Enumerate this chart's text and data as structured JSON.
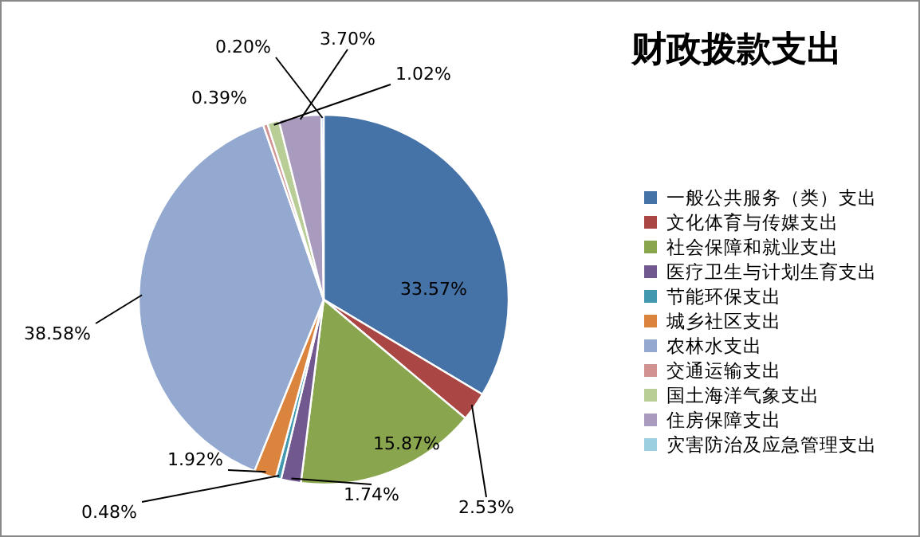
{
  "chart_data": {
    "type": "pie",
    "title": "财政拨款支出",
    "categories": [
      "一般公共服务（类）支出",
      "文化体育与传媒支出",
      "社会保障和就业支出",
      "医疗卫生与计划生育支出",
      "节能环保支出",
      "城乡社区支出",
      "农林水支出",
      "交通运输支出",
      "国土海洋气象支出",
      "住房保障支出",
      "灾害防治及应急管理支出"
    ],
    "values": [
      33.57,
      2.53,
      15.87,
      1.74,
      0.48,
      1.92,
      38.58,
      0.39,
      1.02,
      3.7,
      0.2
    ],
    "colors": [
      "#4572a7",
      "#aa4643",
      "#89a54e",
      "#71588f",
      "#4198af",
      "#db843d",
      "#93a9cf",
      "#d19392",
      "#b9cd96",
      "#a99bbd",
      "#9ccfe0"
    ],
    "value_labels": [
      "33.57%",
      "2.53%",
      "15.87%",
      "1.74%",
      "0.48%",
      "1.92%",
      "38.58%",
      "0.39%",
      "1.02%",
      "3.70%",
      "0.20%"
    ],
    "legend": "right"
  }
}
